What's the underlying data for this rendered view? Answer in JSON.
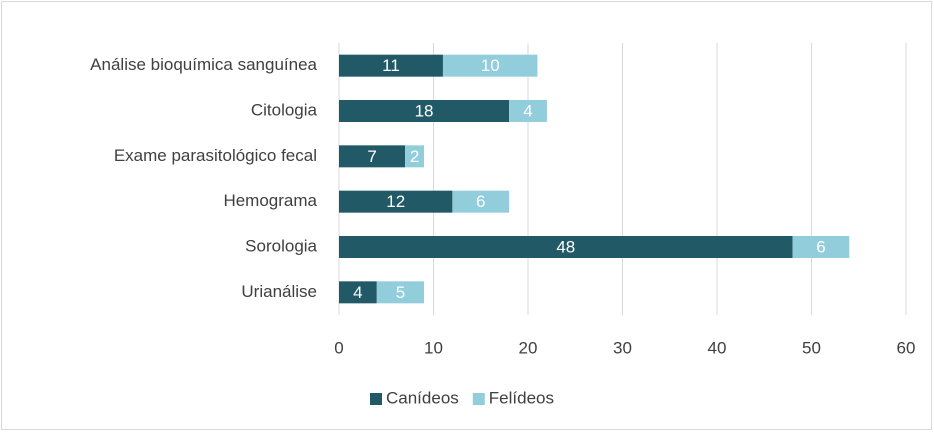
{
  "chart_data": {
    "type": "bar",
    "orientation": "horizontal",
    "stacked": true,
    "categories": [
      "Análise bioquímica sanguínea",
      "Citologia",
      "Exame parasitológico fecal",
      "Hemograma",
      "Sorologia",
      "Urianálise"
    ],
    "series": [
      {
        "name": "Canídeos",
        "color": "#215967",
        "values": [
          11,
          18,
          7,
          12,
          48,
          4
        ]
      },
      {
        "name": "Felídeos",
        "color": "#92cddc",
        "values": [
          10,
          4,
          2,
          6,
          6,
          5
        ]
      }
    ],
    "xlim": [
      0,
      60
    ],
    "xticks": [
      0,
      10,
      20,
      30,
      40,
      50,
      60
    ],
    "grid": true,
    "legend": "bottom",
    "data_labels": true
  }
}
